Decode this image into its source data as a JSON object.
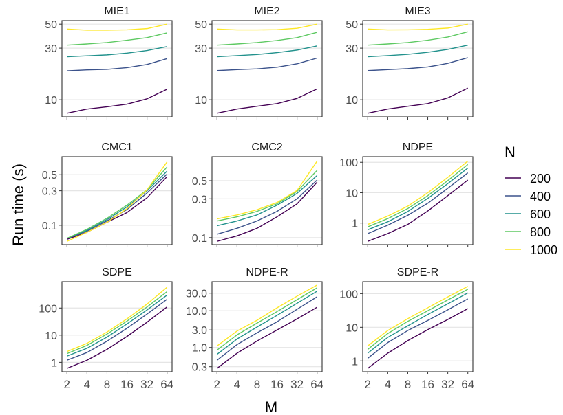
{
  "figure": {
    "ylabel": "Run time (s)",
    "xlabel": "M",
    "legend_title": "N",
    "legend_position": "right",
    "x_ticks": [
      2,
      4,
      8,
      16,
      32,
      64
    ],
    "x_scale": "log2",
    "y_scale": "log10",
    "grid": "major y only",
    "series_names": [
      "200",
      "400",
      "600",
      "800",
      "1000"
    ],
    "series_colors": [
      "#440154",
      "#3b528b",
      "#21918c",
      "#5ec962",
      "#fde725"
    ]
  },
  "chart_data": [
    {
      "type": "line",
      "title": "MIE1",
      "x": [
        2,
        4,
        8,
        16,
        32,
        64
      ],
      "ylim": [
        7.5,
        50
      ],
      "yticks": [
        10,
        30,
        50
      ],
      "ytick_labels": [
        "10",
        "30",
        "50"
      ],
      "series": [
        {
          "name": "200",
          "values": [
            7.5,
            8.2,
            8.6,
            9.1,
            10.2,
            12.5
          ]
        },
        {
          "name": "400",
          "values": [
            18.5,
            18.9,
            19.1,
            19.8,
            21.2,
            24.0
          ]
        },
        {
          "name": "600",
          "values": [
            25.0,
            25.5,
            26.0,
            27.0,
            28.5,
            31.0
          ]
        },
        {
          "name": "800",
          "values": [
            32.0,
            32.8,
            33.8,
            35.5,
            37.5,
            41.5
          ]
        },
        {
          "name": "1000",
          "values": [
            45.0,
            44.0,
            44.0,
            44.3,
            45.5,
            50.0
          ]
        }
      ]
    },
    {
      "type": "line",
      "title": "MIE2",
      "x": [
        2,
        4,
        8,
        16,
        32,
        64
      ],
      "ylim": [
        7.5,
        50
      ],
      "yticks": [
        10,
        30,
        50
      ],
      "ytick_labels": [
        "10",
        "30",
        "50"
      ],
      "series": [
        {
          "name": "200",
          "values": [
            7.5,
            8.2,
            8.7,
            9.2,
            10.3,
            12.6
          ]
        },
        {
          "name": "400",
          "values": [
            18.6,
            19.0,
            19.3,
            20.0,
            21.5,
            24.3
          ]
        },
        {
          "name": "600",
          "values": [
            25.0,
            25.6,
            26.2,
            27.3,
            28.8,
            31.5
          ]
        },
        {
          "name": "800",
          "values": [
            32.0,
            32.8,
            33.8,
            35.3,
            37.5,
            42.0
          ]
        },
        {
          "name": "1000",
          "values": [
            45.0,
            44.2,
            44.2,
            44.5,
            45.8,
            50.0
          ]
        }
      ]
    },
    {
      "type": "line",
      "title": "MIE3",
      "x": [
        2,
        4,
        8,
        16,
        32,
        64
      ],
      "ylim": [
        7.5,
        50
      ],
      "yticks": [
        10,
        30,
        50
      ],
      "ytick_labels": [
        "10",
        "30",
        "50"
      ],
      "series": [
        {
          "name": "200",
          "values": [
            7.5,
            8.2,
            8.7,
            9.2,
            10.4,
            12.8
          ]
        },
        {
          "name": "400",
          "values": [
            18.6,
            19.0,
            19.4,
            20.1,
            21.7,
            24.5
          ]
        },
        {
          "name": "600",
          "values": [
            25.0,
            25.6,
            26.3,
            27.5,
            29.2,
            32.0
          ]
        },
        {
          "name": "800",
          "values": [
            32.0,
            32.8,
            33.8,
            35.5,
            38.0,
            42.5
          ]
        },
        {
          "name": "1000",
          "values": [
            45.0,
            44.2,
            44.3,
            44.8,
            46.0,
            50.0
          ]
        }
      ]
    },
    {
      "type": "line",
      "title": "CMC1",
      "x": [
        2,
        4,
        8,
        16,
        32,
        64
      ],
      "ylim": [
        0.06,
        0.8
      ],
      "yticks": [
        0.1,
        0.3,
        0.5
      ],
      "ytick_labels": [
        "0.1",
        "0.3",
        "0.5"
      ],
      "series": [
        {
          "name": "200",
          "values": [
            0.064,
            0.08,
            0.11,
            0.15,
            0.24,
            0.47
          ]
        },
        {
          "name": "400",
          "values": [
            0.066,
            0.083,
            0.115,
            0.165,
            0.28,
            0.51
          ]
        },
        {
          "name": "600",
          "values": [
            0.066,
            0.085,
            0.12,
            0.18,
            0.3,
            0.56
          ]
        },
        {
          "name": "800",
          "values": [
            0.066,
            0.088,
            0.125,
            0.19,
            0.31,
            0.64
          ]
        },
        {
          "name": "1000",
          "values": [
            0.06,
            0.08,
            0.11,
            0.17,
            0.31,
            0.75
          ]
        }
      ]
    },
    {
      "type": "line",
      "title": "CMC2",
      "x": [
        2,
        4,
        8,
        16,
        32,
        64
      ],
      "ylim": [
        0.09,
        0.9
      ],
      "yticks": [
        0.1,
        0.3,
        0.5
      ],
      "ytick_labels": [
        "0.1",
        "0.3",
        "0.5"
      ],
      "series": [
        {
          "name": "200",
          "values": [
            0.09,
            0.105,
            0.13,
            0.18,
            0.26,
            0.48
          ]
        },
        {
          "name": "400",
          "values": [
            0.11,
            0.13,
            0.16,
            0.21,
            0.3,
            0.51
          ]
        },
        {
          "name": "600",
          "values": [
            0.14,
            0.16,
            0.19,
            0.25,
            0.35,
            0.58
          ]
        },
        {
          "name": "800",
          "values": [
            0.16,
            0.18,
            0.21,
            0.26,
            0.37,
            0.67
          ]
        },
        {
          "name": "1000",
          "values": [
            0.17,
            0.19,
            0.22,
            0.27,
            0.38,
            0.87
          ]
        }
      ]
    },
    {
      "type": "line",
      "title": "NDPE",
      "x": [
        2,
        4,
        8,
        16,
        32,
        64
      ],
      "ylim": [
        0.25,
        120
      ],
      "yticks": [
        1,
        10,
        100
      ],
      "ytick_labels": [
        "1",
        "10",
        "100"
      ],
      "series": [
        {
          "name": "200",
          "values": [
            0.25,
            0.45,
            0.9,
            2.5,
            8,
            26
          ]
        },
        {
          "name": "400",
          "values": [
            0.45,
            0.85,
            1.8,
            4.5,
            14,
            45
          ]
        },
        {
          "name": "600",
          "values": [
            0.6,
            1.1,
            2.4,
            6.5,
            20,
            65
          ]
        },
        {
          "name": "800",
          "values": [
            0.75,
            1.4,
            3.0,
            8.0,
            25,
            85
          ]
        },
        {
          "name": "1000",
          "values": [
            0.9,
            1.7,
            3.6,
            10,
            32,
            110
          ]
        }
      ]
    },
    {
      "type": "line",
      "title": "SDPE",
      "x": [
        2,
        4,
        8,
        16,
        32,
        64
      ],
      "ylim": [
        0.6,
        700
      ],
      "yticks": [
        1,
        10,
        100
      ],
      "ytick_labels": [
        "1",
        "10",
        "100"
      ],
      "series": [
        {
          "name": "200",
          "values": [
            0.6,
            1.2,
            3.0,
            9,
            30,
            110
          ]
        },
        {
          "name": "400",
          "values": [
            1.2,
            2.3,
            6.0,
            18,
            60,
            210
          ]
        },
        {
          "name": "600",
          "values": [
            1.7,
            3.3,
            8.5,
            26,
            85,
            300
          ]
        },
        {
          "name": "800",
          "values": [
            2.1,
            4.2,
            11,
            33,
            110,
            400
          ]
        },
        {
          "name": "1000",
          "values": [
            2.5,
            5.0,
            13,
            40,
            140,
            580
          ]
        }
      ]
    },
    {
      "type": "line",
      "title": "NDPE-R",
      "x": [
        2,
        4,
        8,
        16,
        32,
        64
      ],
      "ylim": [
        0.27,
        50
      ],
      "yticks": [
        0.3,
        1.0,
        3.0,
        10.0,
        30.0
      ],
      "ytick_labels": [
        "0.3",
        "1.0",
        "3.0",
        "10.0",
        "30.0"
      ],
      "series": [
        {
          "name": "200",
          "values": [
            0.27,
            0.7,
            1.5,
            3.0,
            6.0,
            12.5
          ]
        },
        {
          "name": "400",
          "values": [
            0.45,
            1.2,
            2.5,
            5.0,
            11,
            24
          ]
        },
        {
          "name": "600",
          "values": [
            0.65,
            1.7,
            3.6,
            7.5,
            16,
            34
          ]
        },
        {
          "name": "800",
          "values": [
            0.85,
            2.2,
            4.6,
            9.5,
            20,
            42
          ]
        },
        {
          "name": "1000",
          "values": [
            1.1,
            2.8,
            5.5,
            12,
            25,
            50
          ]
        }
      ]
    },
    {
      "type": "line",
      "title": "SDPE-R",
      "x": [
        2,
        4,
        8,
        16,
        32,
        64
      ],
      "ylim": [
        0.6,
        180
      ],
      "yticks": [
        1,
        10,
        100
      ],
      "ytick_labels": [
        "1",
        "10",
        "100"
      ],
      "series": [
        {
          "name": "200",
          "values": [
            0.6,
            1.7,
            4.0,
            8.5,
            17,
            36
          ]
        },
        {
          "name": "400",
          "values": [
            1.2,
            3.5,
            8.0,
            16,
            33,
            70
          ]
        },
        {
          "name": "600",
          "values": [
            1.7,
            5.0,
            11,
            24,
            50,
            105
          ]
        },
        {
          "name": "800",
          "values": [
            2.2,
            6.5,
            15,
            31,
            65,
            135
          ]
        },
        {
          "name": "1000",
          "values": [
            2.8,
            8.0,
            18,
            38,
            80,
            165
          ]
        }
      ]
    }
  ]
}
